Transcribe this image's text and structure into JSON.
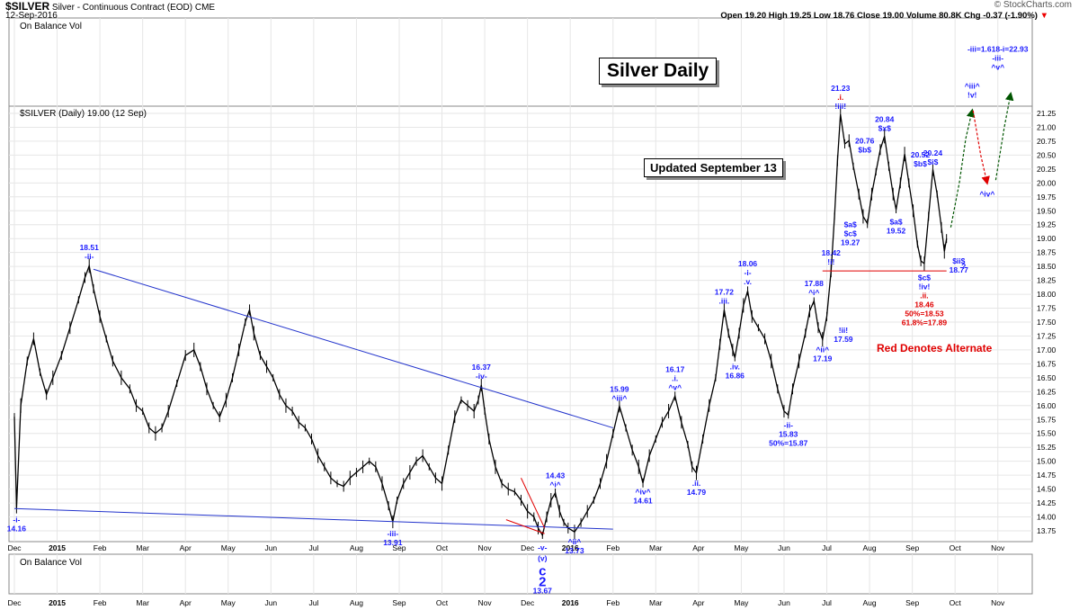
{
  "header": {
    "symbol": "$SILVER",
    "name": "Silver - Continuous Contract (EOD)",
    "exchange": "CME",
    "date": "12-Sep-2016",
    "brand": "© StockCharts.com",
    "quote": "Open 19.20  High 19.25  Low 18.76  Close 19.00  Volume 80.8K  Chg -0.37 (-1.90%)",
    "chg_arrow": "▼"
  },
  "panels": {
    "top_label": "On Balance Vol",
    "bottom_label": "On Balance Vol",
    "price_label": "$SILVER (Daily) 19.00 (12 Sep)"
  },
  "boxes": {
    "main_title": "Silver Daily",
    "updated": "Updated September 13",
    "alternate_note": "Red Denotes Alternate"
  },
  "colors": {
    "price": "#000000",
    "wave_labels": "#1a1aff",
    "alternate": "#e00000",
    "trendline": "#2233cc",
    "forecast": "#005500",
    "grid": "#e6e6e6"
  },
  "chart_data": {
    "type": "line",
    "title": "Silver Daily",
    "y_axis_side": "right",
    "ylim": [
      13.5,
      21.3
    ],
    "yticks": [
      "13.75",
      "14.00",
      "14.25",
      "14.50",
      "14.75",
      "15.00",
      "15.25",
      "15.50",
      "15.75",
      "16.00",
      "16.25",
      "16.50",
      "16.75",
      "17.00",
      "17.25",
      "17.50",
      "17.75",
      "18.00",
      "18.25",
      "18.50",
      "18.75",
      "19.00",
      "19.25",
      "19.50",
      "19.75",
      "20.00",
      "20.25",
      "20.50",
      "20.75",
      "21.00",
      "21.25"
    ],
    "x_labels": [
      {
        "t": 0,
        "label": "Dec"
      },
      {
        "t": 1,
        "label": "2015"
      },
      {
        "t": 2,
        "label": "Feb"
      },
      {
        "t": 3,
        "label": "Mar"
      },
      {
        "t": 4,
        "label": "Apr"
      },
      {
        "t": 5,
        "label": "May"
      },
      {
        "t": 6,
        "label": "Jun"
      },
      {
        "t": 7,
        "label": "Jul"
      },
      {
        "t": 8,
        "label": "Aug"
      },
      {
        "t": 9,
        "label": "Sep"
      },
      {
        "t": 10,
        "label": "Oct"
      },
      {
        "t": 11,
        "label": "Nov"
      },
      {
        "t": 12,
        "label": "Dec"
      },
      {
        "t": 13,
        "label": "2016"
      },
      {
        "t": 14,
        "label": "Feb"
      },
      {
        "t": 15,
        "label": "Mar"
      },
      {
        "t": 16,
        "label": "Apr"
      },
      {
        "t": 17,
        "label": "May"
      },
      {
        "t": 18,
        "label": "Jun"
      },
      {
        "t": 19,
        "label": "Jul"
      },
      {
        "t": 20,
        "label": "Aug"
      },
      {
        "t": 21,
        "label": "Sep"
      },
      {
        "t": 22,
        "label": "Oct"
      },
      {
        "t": 23,
        "label": "Nov"
      }
    ],
    "xlim": [
      0,
      23.3
    ],
    "price_path": [
      [
        0.0,
        15.8
      ],
      [
        0.05,
        14.16
      ],
      [
        0.15,
        16.0
      ],
      [
        0.3,
        16.8
      ],
      [
        0.45,
        17.2
      ],
      [
        0.6,
        16.6
      ],
      [
        0.75,
        16.2
      ],
      [
        0.9,
        16.5
      ],
      [
        1.1,
        16.9
      ],
      [
        1.3,
        17.4
      ],
      [
        1.5,
        17.9
      ],
      [
        1.65,
        18.3
      ],
      [
        1.75,
        18.51
      ],
      [
        1.85,
        18.1
      ],
      [
        2.0,
        17.6
      ],
      [
        2.15,
        17.2
      ],
      [
        2.3,
        16.8
      ],
      [
        2.5,
        16.5
      ],
      [
        2.7,
        16.3
      ],
      [
        2.85,
        16.0
      ],
      [
        3.0,
        15.9
      ],
      [
        3.15,
        15.6
      ],
      [
        3.3,
        15.5
      ],
      [
        3.45,
        15.6
      ],
      [
        3.6,
        15.9
      ],
      [
        3.8,
        16.4
      ],
      [
        4.0,
        16.9
      ],
      [
        4.2,
        17.0
      ],
      [
        4.35,
        16.7
      ],
      [
        4.5,
        16.3
      ],
      [
        4.65,
        16.0
      ],
      [
        4.8,
        15.8
      ],
      [
        4.95,
        16.1
      ],
      [
        5.1,
        16.5
      ],
      [
        5.25,
        17.0
      ],
      [
        5.4,
        17.5
      ],
      [
        5.5,
        17.72
      ],
      [
        5.6,
        17.3
      ],
      [
        5.75,
        16.9
      ],
      [
        5.9,
        16.7
      ],
      [
        6.05,
        16.5
      ],
      [
        6.2,
        16.2
      ],
      [
        6.35,
        16.0
      ],
      [
        6.5,
        15.9
      ],
      [
        6.65,
        15.7
      ],
      [
        6.8,
        15.6
      ],
      [
        6.95,
        15.4
      ],
      [
        7.1,
        15.1
      ],
      [
        7.25,
        14.9
      ],
      [
        7.4,
        14.7
      ],
      [
        7.55,
        14.6
      ],
      [
        7.7,
        14.55
      ],
      [
        7.85,
        14.7
      ],
      [
        8.0,
        14.8
      ],
      [
        8.15,
        14.9
      ],
      [
        8.3,
        15.0
      ],
      [
        8.45,
        14.9
      ],
      [
        8.6,
        14.6
      ],
      [
        8.75,
        14.2
      ],
      [
        8.85,
        13.91
      ],
      [
        8.95,
        14.3
      ],
      [
        9.1,
        14.6
      ],
      [
        9.25,
        14.8
      ],
      [
        9.4,
        15.0
      ],
      [
        9.55,
        15.1
      ],
      [
        9.7,
        14.9
      ],
      [
        9.85,
        14.7
      ],
      [
        10.0,
        14.6
      ],
      [
        10.15,
        15.2
      ],
      [
        10.3,
        15.8
      ],
      [
        10.45,
        16.1
      ],
      [
        10.6,
        16.0
      ],
      [
        10.75,
        15.9
      ],
      [
        10.85,
        16.1
      ],
      [
        10.92,
        16.37
      ],
      [
        11.0,
        15.9
      ],
      [
        11.1,
        15.4
      ],
      [
        11.25,
        14.9
      ],
      [
        11.4,
        14.6
      ],
      [
        11.55,
        14.5
      ],
      [
        11.7,
        14.45
      ],
      [
        11.85,
        14.3
      ],
      [
        12.0,
        14.1
      ],
      [
        12.15,
        14.0
      ],
      [
        12.25,
        13.8
      ],
      [
        12.35,
        13.67
      ],
      [
        12.45,
        14.0
      ],
      [
        12.55,
        14.3
      ],
      [
        12.65,
        14.43
      ],
      [
        12.75,
        14.1
      ],
      [
        12.85,
        13.9
      ],
      [
        12.95,
        13.8
      ],
      [
        13.1,
        13.73
      ],
      [
        13.25,
        13.9
      ],
      [
        13.4,
        14.1
      ],
      [
        13.55,
        14.3
      ],
      [
        13.7,
        14.6
      ],
      [
        13.85,
        15.0
      ],
      [
        14.0,
        15.5
      ],
      [
        14.15,
        15.99
      ],
      [
        14.3,
        15.6
      ],
      [
        14.45,
        15.2
      ],
      [
        14.6,
        14.9
      ],
      [
        14.7,
        14.61
      ],
      [
        14.85,
        15.1
      ],
      [
        15.0,
        15.4
      ],
      [
        15.15,
        15.7
      ],
      [
        15.3,
        15.9
      ],
      [
        15.45,
        16.17
      ],
      [
        15.6,
        15.7
      ],
      [
        15.75,
        15.3
      ],
      [
        15.85,
        14.9
      ],
      [
        15.95,
        14.79
      ],
      [
        16.1,
        15.4
      ],
      [
        16.25,
        16.0
      ],
      [
        16.4,
        16.5
      ],
      [
        16.5,
        17.1
      ],
      [
        16.6,
        17.72
      ],
      [
        16.7,
        17.3
      ],
      [
        16.8,
        17.0
      ],
      [
        16.85,
        16.86
      ],
      [
        16.95,
        17.3
      ],
      [
        17.05,
        17.8
      ],
      [
        17.15,
        18.06
      ],
      [
        17.25,
        17.6
      ],
      [
        17.4,
        17.4
      ],
      [
        17.55,
        17.2
      ],
      [
        17.7,
        16.8
      ],
      [
        17.85,
        16.3
      ],
      [
        18.0,
        15.9
      ],
      [
        18.1,
        15.83
      ],
      [
        18.2,
        16.3
      ],
      [
        18.35,
        16.8
      ],
      [
        18.5,
        17.3
      ],
      [
        18.6,
        17.7
      ],
      [
        18.7,
        17.88
      ],
      [
        18.8,
        17.4
      ],
      [
        18.9,
        17.19
      ],
      [
        19.0,
        17.6
      ],
      [
        19.1,
        18.42
      ],
      [
        19.18,
        19.4
      ],
      [
        19.25,
        20.4
      ],
      [
        19.32,
        21.23
      ],
      [
        19.42,
        20.7
      ],
      [
        19.52,
        20.76
      ],
      [
        19.62,
        20.3
      ],
      [
        19.75,
        19.8
      ],
      [
        19.85,
        19.4
      ],
      [
        19.95,
        19.27
      ],
      [
        20.05,
        19.8
      ],
      [
        20.15,
        20.2
      ],
      [
        20.25,
        20.6
      ],
      [
        20.35,
        20.84
      ],
      [
        20.45,
        20.3
      ],
      [
        20.55,
        19.8
      ],
      [
        20.62,
        19.52
      ],
      [
        20.72,
        20.0
      ],
      [
        20.82,
        20.52
      ],
      [
        20.92,
        20.0
      ],
      [
        21.02,
        19.5
      ],
      [
        21.12,
        18.9
      ],
      [
        21.2,
        18.6
      ],
      [
        21.28,
        18.55
      ],
      [
        21.38,
        19.4
      ],
      [
        21.48,
        20.24
      ],
      [
        21.58,
        19.8
      ],
      [
        21.68,
        19.2
      ],
      [
        21.75,
        18.77
      ],
      [
        21.8,
        19.0
      ]
    ],
    "forecast_path": [
      [
        21.9,
        19.2
      ],
      [
        22.1,
        20.0
      ],
      [
        22.25,
        20.8
      ],
      [
        22.4,
        21.3
      ]
    ],
    "alt_forecast_path": [
      [
        22.42,
        21.3
      ],
      [
        22.6,
        20.5
      ],
      [
        22.75,
        20.0
      ]
    ],
    "forecast2_path": [
      [
        22.95,
        20.05
      ],
      [
        23.15,
        21.0
      ],
      [
        23.3,
        21.6
      ]
    ],
    "trendlines": [
      {
        "from": [
          1.85,
          18.45
        ],
        "to": [
          14.0,
          15.6
        ]
      },
      {
        "from": [
          0.0,
          14.15
        ],
        "to": [
          14.0,
          13.78
        ]
      }
    ],
    "alt_lines": [
      {
        "from": [
          11.85,
          14.7
        ],
        "to": [
          12.4,
          13.8
        ]
      },
      {
        "from": [
          11.5,
          13.95
        ],
        "to": [
          12.4,
          13.7
        ]
      }
    ],
    "support_line": {
      "from": [
        18.9,
        18.42
      ],
      "to": [
        21.8,
        18.42
      ]
    },
    "annotations": [
      {
        "t": 0.05,
        "y": 14.05,
        "lines": [
          "-i-",
          "14.16"
        ],
        "color": "blue"
      },
      {
        "t": 1.75,
        "y": 18.6,
        "lines": [
          "18.51",
          "-ii-"
        ],
        "color": "blue",
        "above": true
      },
      {
        "t": 8.85,
        "y": 13.8,
        "lines": [
          "-iii-",
          "13.91"
        ],
        "color": "blue"
      },
      {
        "t": 10.92,
        "y": 16.45,
        "lines": [
          "16.37",
          "-iv-"
        ],
        "color": "blue",
        "above": true
      },
      {
        "t": 12.35,
        "y": 13.55,
        "lines": [
          "-v-",
          "(v)",
          "c",
          "2",
          "13.67"
        ],
        "color": "blue",
        "big": true
      },
      {
        "t": 12.65,
        "y": 14.5,
        "lines": [
          "14.43",
          "^i^"
        ],
        "color": "blue",
        "above": true
      },
      {
        "t": 13.1,
        "y": 13.65,
        "lines": [
          "^ii^",
          "13.73"
        ],
        "color": "blue"
      },
      {
        "t": 14.15,
        "y": 16.05,
        "lines": [
          "15.99",
          "^iii^"
        ],
        "color": "blue",
        "above": true
      },
      {
        "t": 14.7,
        "y": 14.55,
        "lines": [
          "^iv^",
          "14.61"
        ],
        "color": "blue"
      },
      {
        "t": 15.45,
        "y": 16.25,
        "lines": [
          "16.17",
          ".i.",
          "^v^"
        ],
        "color": "blue",
        "above": true
      },
      {
        "t": 15.95,
        "y": 14.7,
        "lines": [
          ".ii.",
          "14.79"
        ],
        "color": "blue"
      },
      {
        "t": 16.6,
        "y": 17.8,
        "lines": [
          "17.72",
          ".iii."
        ],
        "color": "blue",
        "above": true
      },
      {
        "t": 16.85,
        "y": 16.8,
        "lines": [
          ".iv.",
          "16.86"
        ],
        "color": "blue"
      },
      {
        "t": 17.15,
        "y": 18.15,
        "lines": [
          "18.06",
          "-i-",
          ".v."
        ],
        "color": "blue",
        "above": true
      },
      {
        "t": 18.1,
        "y": 15.75,
        "lines": [
          "-ii-",
          "15.83",
          "50%=15.87"
        ],
        "color": "blue"
      },
      {
        "t": 18.7,
        "y": 17.95,
        "lines": [
          "17.88",
          "^i^"
        ],
        "color": "blue",
        "above": true
      },
      {
        "t": 18.9,
        "y": 17.1,
        "lines": [
          "^ii^",
          "17.19"
        ],
        "color": "blue"
      },
      {
        "t": 19.1,
        "y": 18.5,
        "lines": [
          "18.42",
          "!i!"
        ],
        "color": "blue",
        "above": true
      },
      {
        "t": 19.05,
        "y": 17.45,
        "lines": [
          "!ii!",
          "17.59"
        ],
        "color": "blue",
        "right": true
      },
      {
        "t": 19.32,
        "y": 21.3,
        "lines": [
          "21.23",
          ".i.",
          "!iii!"
        ],
        "color": "mixed",
        "above": true
      },
      {
        "t": 19.55,
        "y": 20.85,
        "lines": [
          "20.76",
          "$b$"
        ],
        "color": "blue",
        "right": true
      },
      {
        "t": 19.55,
        "y": 19.35,
        "lines": [
          "$a$",
          "$c$",
          "19.27"
        ],
        "color": "blue"
      },
      {
        "t": 20.35,
        "y": 20.9,
        "lines": [
          "20.84",
          "$x$"
        ],
        "color": "blue",
        "above": true
      },
      {
        "t": 20.85,
        "y": 20.6,
        "lines": [
          "20.52",
          "$b$"
        ],
        "color": "blue",
        "right": true
      },
      {
        "t": 20.62,
        "y": 19.4,
        "lines": [
          "$a$",
          "19.52"
        ],
        "color": "blue"
      },
      {
        "t": 21.48,
        "y": 20.3,
        "lines": [
          "20.24",
          "$i$"
        ],
        "color": "blue",
        "above": true
      },
      {
        "t": 21.28,
        "y": 18.4,
        "lines": [
          "$c$",
          "!iv!",
          ".ii.",
          "18.46",
          "50%=18.53",
          "61.8%=17.89"
        ],
        "color": "mixed"
      },
      {
        "t": 21.75,
        "y": 18.7,
        "lines": [
          "$ii$",
          "18.77"
        ],
        "color": "blue",
        "right": true
      },
      {
        "t": 22.2,
        "y": 18.6,
        "lines": [
          "?"
        ],
        "color": "blue"
      },
      {
        "t": 22.4,
        "y": 21.5,
        "lines": [
          "^iii^",
          "!v!"
        ],
        "color": "blue",
        "above": true
      },
      {
        "t": 22.75,
        "y": 19.9,
        "lines": [
          "^iv^"
        ],
        "color": "blue"
      },
      {
        "t": 23.0,
        "y": 22.0,
        "lines": [
          "-iii=1.618-i=22.93",
          "-iii-",
          "^v^"
        ],
        "color": "blue",
        "above": true
      }
    ]
  }
}
